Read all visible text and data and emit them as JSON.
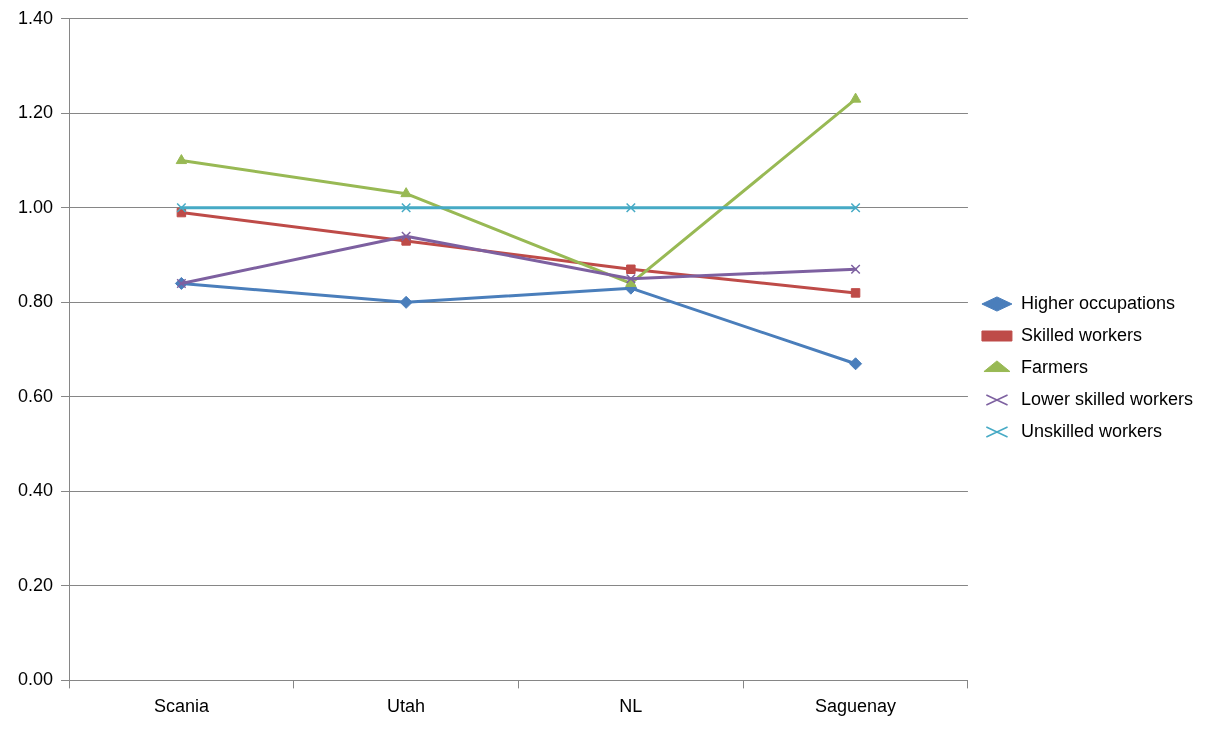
{
  "chart_data": {
    "type": "line",
    "categories": [
      "Scania",
      "Utah",
      "NL",
      "Saguenay"
    ],
    "series": [
      {
        "name": "Higher occupations",
        "color": "#4a7ebb",
        "marker": "diamond",
        "values": [
          0.84,
          0.8,
          0.83,
          0.67
        ]
      },
      {
        "name": "Skilled workers",
        "color": "#be4b48",
        "marker": "square",
        "values": [
          0.99,
          0.93,
          0.87,
          0.82
        ]
      },
      {
        "name": "Farmers",
        "color": "#98b954",
        "marker": "triangle",
        "values": [
          1.1,
          1.03,
          0.84,
          1.23
        ]
      },
      {
        "name": "Lower skilled workers",
        "color": "#7d60a0",
        "marker": "cross",
        "values": [
          0.84,
          0.94,
          0.85,
          0.87
        ]
      },
      {
        "name": "Unskilled workers",
        "color": "#46aac5",
        "marker": "cross",
        "values": [
          1.0,
          1.0,
          1.0,
          1.0
        ]
      }
    ],
    "ylim": [
      0,
      1.4
    ],
    "yticks": [
      {
        "value": 0,
        "label": "0.00"
      },
      {
        "value": 0.2,
        "label": "0.20"
      },
      {
        "value": 0.4,
        "label": "0.40"
      },
      {
        "value": 0.6,
        "label": "0.60"
      },
      {
        "value": 0.8,
        "label": "0.80"
      },
      {
        "value": 1.0,
        "label": "1.00"
      },
      {
        "value": 1.2,
        "label": "1.20"
      },
      {
        "value": 1.4,
        "label": "1.40"
      }
    ],
    "grid": "y",
    "legend": "right",
    "line_style": "solid"
  }
}
